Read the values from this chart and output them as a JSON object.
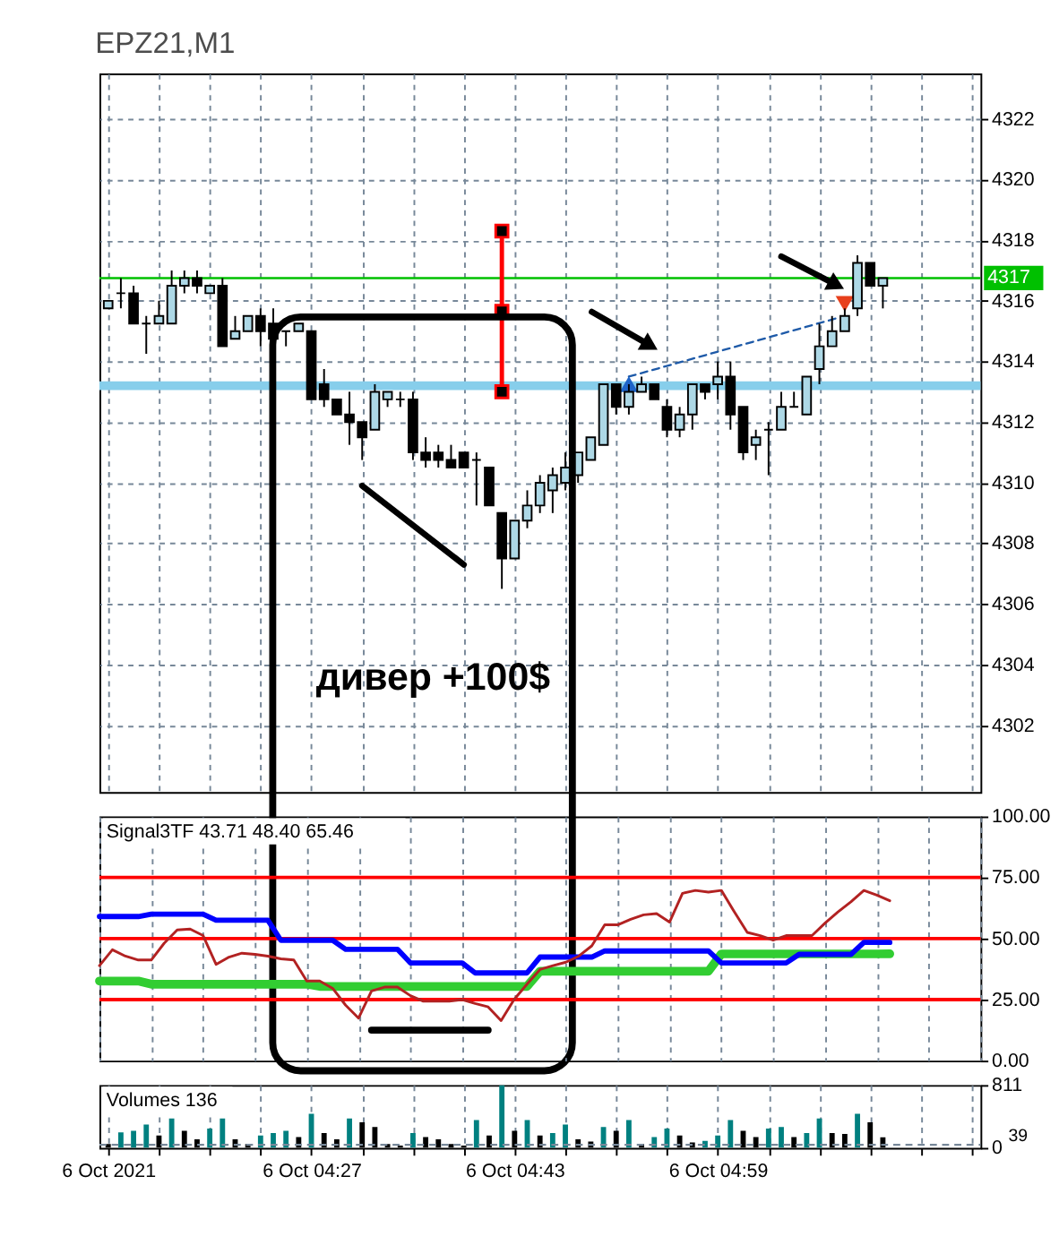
{
  "chart_data": [
    {
      "type": "candlestick",
      "title": "EPZ21,M1",
      "x": [
        "2021-10-06T04:11",
        "2021-10-06T04:12",
        "2021-10-06T04:13",
        "2021-10-06T04:14",
        "2021-10-06T04:15",
        "2021-10-06T04:16",
        "2021-10-06T04:17",
        "2021-10-06T04:18",
        "2021-10-06T04:19",
        "2021-10-06T04:20",
        "2021-10-06T04:21",
        "2021-10-06T04:22",
        "2021-10-06T04:23",
        "2021-10-06T04:24",
        "2021-10-06T04:25",
        "2021-10-06T04:26",
        "2021-10-06T04:27",
        "2021-10-06T04:28",
        "2021-10-06T04:29",
        "2021-10-06T04:30",
        "2021-10-06T04:31",
        "2021-10-06T04:32",
        "2021-10-06T04:33",
        "2021-10-06T04:34",
        "2021-10-06T04:35",
        "2021-10-06T04:36",
        "2021-10-06T04:37",
        "2021-10-06T04:38",
        "2021-10-06T04:39",
        "2021-10-06T04:40",
        "2021-10-06T04:41",
        "2021-10-06T04:42",
        "2021-10-06T04:43",
        "2021-10-06T04:44",
        "2021-10-06T04:45",
        "2021-10-06T04:46",
        "2021-10-06T04:47",
        "2021-10-06T04:48",
        "2021-10-06T04:49",
        "2021-10-06T04:50",
        "2021-10-06T04:51",
        "2021-10-06T04:52",
        "2021-10-06T04:53",
        "2021-10-06T04:54",
        "2021-10-06T04:55",
        "2021-10-06T04:56",
        "2021-10-06T04:57",
        "2021-10-06T04:58",
        "2021-10-06T04:59",
        "2021-10-06T05:00",
        "2021-10-06T05:01",
        "2021-10-06T05:02",
        "2021-10-06T05:03",
        "2021-10-06T05:04",
        "2021-10-06T05:05",
        "2021-10-06T05:06",
        "2021-10-06T05:07",
        "2021-10-06T05:08",
        "2021-10-06T05:09",
        "2021-10-06T05:10",
        "2021-10-06T05:11",
        "2021-10-06T05:12"
      ],
      "ohlc": [
        [
          4315.75,
          4316.0,
          4315.75,
          4316.0
        ],
        [
          4316.25,
          4316.75,
          4315.75,
          4316.25
        ],
        [
          4316.25,
          4316.5,
          4315.25,
          4315.25
        ],
        [
          4315.25,
          4315.5,
          4314.25,
          4315.25
        ],
        [
          4315.25,
          4316.0,
          4315.25,
          4315.5
        ],
        [
          4315.25,
          4317.0,
          4315.25,
          4316.5
        ],
        [
          4316.5,
          4317.0,
          4316.25,
          4316.75
        ],
        [
          4316.75,
          4317.0,
          4316.25,
          4316.5
        ],
        [
          4316.25,
          4316.5,
          4316.25,
          4316.5
        ],
        [
          4316.5,
          4316.75,
          4314.5,
          4314.5
        ],
        [
          4314.75,
          4315.5,
          4314.75,
          4315.0
        ],
        [
          4315.0,
          4315.5,
          4315.0,
          4315.5
        ],
        [
          4315.5,
          4315.75,
          4314.5,
          4315.0
        ],
        [
          4315.25,
          4315.75,
          4314.75,
          4314.75
        ],
        [
          4315.0,
          4315.0,
          4314.5,
          4315.0
        ],
        [
          4315.0,
          4315.25,
          4315.0,
          4315.25
        ],
        [
          4315.0,
          4315.0,
          4312.75,
          4312.75
        ],
        [
          4313.25,
          4313.75,
          4312.5,
          4312.75
        ],
        [
          4312.75,
          4312.75,
          4312.25,
          4312.25
        ],
        [
          4312.25,
          4313.0,
          4311.25,
          4312.0
        ],
        [
          4312.0,
          4312.0,
          4310.75,
          4311.5
        ],
        [
          4311.75,
          4313.25,
          4311.75,
          4313.0
        ],
        [
          4312.75,
          4313.0,
          4312.5,
          4313.0
        ],
        [
          4312.75,
          4313.0,
          4312.5,
          4312.75
        ],
        [
          4312.75,
          4313.0,
          4310.75,
          4311.0
        ],
        [
          4311.0,
          4311.5,
          4310.5,
          4310.75
        ],
        [
          4311.0,
          4311.25,
          4310.5,
          4310.75
        ],
        [
          4310.75,
          4311.25,
          4310.5,
          4310.5
        ],
        [
          4311.0,
          4311.0,
          4310.5,
          4310.5
        ],
        [
          4310.75,
          4311.0,
          4309.25,
          4310.75
        ],
        [
          4310.5,
          4310.5,
          4309.25,
          4309.25
        ],
        [
          4309.0,
          4309.0,
          4306.5,
          4307.5
        ],
        [
          4307.5,
          4308.75,
          4307.5,
          4308.75
        ],
        [
          4308.75,
          4309.75,
          4308.5,
          4309.25
        ],
        [
          4309.25,
          4310.25,
          4309.0,
          4310.0
        ],
        [
          4309.75,
          4310.5,
          4309.0,
          4310.25
        ],
        [
          4310.0,
          4311.0,
          4309.75,
          4310.5
        ],
        [
          4310.25,
          4311.0,
          4310.0,
          4311.0
        ],
        [
          4310.75,
          4311.5,
          4310.75,
          4311.5
        ],
        [
          4311.25,
          4313.25,
          4311.25,
          4313.25
        ],
        [
          4313.25,
          4313.25,
          4312.25,
          4312.5
        ],
        [
          4312.5,
          4313.25,
          4312.25,
          4313.0
        ],
        [
          4313.0,
          4313.5,
          4313.0,
          4313.25
        ],
        [
          4313.25,
          4313.25,
          4312.75,
          4312.75
        ],
        [
          4312.5,
          4312.75,
          4311.5,
          4311.75
        ],
        [
          4311.75,
          4312.5,
          4311.5,
          4312.25
        ],
        [
          4312.25,
          4313.25,
          4311.75,
          4313.25
        ],
        [
          4313.25,
          4313.25,
          4312.75,
          4313.0
        ],
        [
          4313.25,
          4314.0,
          4312.75,
          4313.5
        ],
        [
          4313.5,
          4314.0,
          4311.75,
          4312.25
        ],
        [
          4312.5,
          4312.5,
          4310.75,
          4311.0
        ],
        [
          4311.25,
          4311.75,
          4310.75,
          4311.5
        ],
        [
          4311.75,
          4312.0,
          4310.25,
          4311.75
        ],
        [
          4311.75,
          4313.0,
          4311.75,
          4312.5
        ],
        [
          4312.5,
          4313.0,
          4312.5,
          4312.5
        ],
        [
          4312.25,
          4313.5,
          4312.25,
          4313.5
        ],
        [
          4313.75,
          4315.25,
          4313.25,
          4314.5
        ],
        [
          4314.5,
          4315.5,
          4314.5,
          4315.0
        ],
        [
          4315.0,
          4315.75,
          4315.0,
          4315.5
        ],
        [
          4315.75,
          4317.5,
          4315.5,
          4317.25
        ],
        [
          4317.25,
          4317.25,
          4316.5,
          4316.5
        ],
        [
          4316.5,
          4316.75,
          4315.75,
          4316.75
        ]
      ],
      "colors": [
        "#add8e6",
        "#000000",
        "#000000",
        "#000000",
        "#add8e6",
        "#add8e6",
        "#add8e6",
        "#000000",
        "#add8e6",
        "#000000",
        "#add8e6",
        "#add8e6",
        "#000000",
        "#000000",
        "#000000",
        "#add8e6",
        "#000000",
        "#000000",
        "#000000",
        "#000000",
        "#000000",
        "#add8e6",
        "#add8e6",
        "#000000",
        "#000000",
        "#000000",
        "#000000",
        "#000000",
        "#000000",
        "#000000",
        "#000000",
        "#000000",
        "#add8e6",
        "#add8e6",
        "#add8e6",
        "#add8e6",
        "#add8e6",
        "#add8e6",
        "#add8e6",
        "#add8e6",
        "#000000",
        "#add8e6",
        "#add8e6",
        "#000000",
        "#000000",
        "#add8e6",
        "#add8e6",
        "#000000",
        "#add8e6",
        "#000000",
        "#000000",
        "#add8e6",
        "#000000",
        "#add8e6",
        "#000000",
        "#add8e6",
        "#add8e6",
        "#add8e6",
        "#add8e6",
        "#add8e6",
        "#000000",
        "#add8e6"
      ],
      "series": [
        {
          "type": "line",
          "x": [
            "2021-10-06T04:42",
            "2021-10-06T04:42",
            "2021-10-06T04:42"
          ],
          "values": [
            4318.3,
            4315.65,
            4313.0
          ],
          "color": "#ff0000",
          "marker": "square"
        },
        {
          "type": "line",
          "x": [
            "2021-10-06T04:52",
            "2021-10-06T05:09"
          ],
          "values": [
            4313.5,
            4315.5
          ],
          "color": "#1e5aa8",
          "line_style": "dashed"
        },
        {
          "type": "scatter",
          "x": [
            "2021-10-06T04:52"
          ],
          "values": [
            4313.25
          ],
          "color": "#1e64c8",
          "marker": "triangle"
        },
        {
          "type": "scatter",
          "x": [
            "2021-10-06T05:09"
          ],
          "values": [
            4315.9
          ],
          "color": "#e8401c",
          "marker": "triangle-down"
        },
        {
          "type": "line",
          "x": [
            "2021-10-06T04:31",
            "2021-10-06T04:39"
          ],
          "values": [
            4309.9,
            4307.3
          ],
          "color": "#000000"
        }
      ],
      "ref_lines": [
        {
          "axis": "y",
          "value": 4316.75,
          "label": "4317",
          "color": "#00c000"
        },
        {
          "axis": "y",
          "value": 4313.2,
          "color": "#87ceeb"
        }
      ],
      "annotations": [
        "дивер +100$"
      ],
      "xlim": [
        "2021-10-06T04:11",
        "2021-10-06T05:19"
      ],
      "xticks": [
        {
          "value": "2021-10-06T04:11",
          "label": null
        },
        {
          "value": "2021-10-06T04:15",
          "label": null
        },
        {
          "value": "2021-10-06T04:19",
          "label": null
        },
        {
          "value": "2021-10-06T04:23",
          "label": null
        },
        {
          "value": "2021-10-06T04:27",
          "label": null
        },
        {
          "value": "2021-10-06T04:31",
          "label": null
        },
        {
          "value": "2021-10-06T04:35",
          "label": null
        },
        {
          "value": "2021-10-06T04:39",
          "label": null
        },
        {
          "value": "2021-10-06T04:43",
          "label": null
        },
        {
          "value": "2021-10-06T04:47",
          "label": null
        },
        {
          "value": "2021-10-06T04:51",
          "label": null
        },
        {
          "value": "2021-10-06T04:55",
          "label": null
        },
        {
          "value": "2021-10-06T04:59",
          "label": null
        },
        {
          "value": "2021-10-06T05:03",
          "label": null
        },
        {
          "value": "2021-10-06T05:07",
          "label": null
        },
        {
          "value": "2021-10-06T05:11",
          "label": null
        },
        {
          "value": "2021-10-06T05:15",
          "label": null
        },
        {
          "value": "2021-10-06T05:19",
          "label": null
        }
      ],
      "ylim": [
        4299.8,
        4323.5
      ],
      "yticks": [
        4302,
        4304,
        4306,
        4308,
        4310,
        4312,
        4314,
        4316,
        4318,
        4320,
        4322
      ],
      "grid": true,
      "tick_labels": "y"
    },
    {
      "type": "line",
      "title": "Signal3TF 43.71 48.40 65.46",
      "x": [
        "2021-10-06T04:11",
        "2021-10-06T04:12",
        "2021-10-06T04:13",
        "2021-10-06T04:14",
        "2021-10-06T04:15",
        "2021-10-06T04:16",
        "2021-10-06T04:17",
        "2021-10-06T04:18",
        "2021-10-06T04:19",
        "2021-10-06T04:20",
        "2021-10-06T04:21",
        "2021-10-06T04:22",
        "2021-10-06T04:23",
        "2021-10-06T04:24",
        "2021-10-06T04:25",
        "2021-10-06T04:26",
        "2021-10-06T04:27",
        "2021-10-06T04:28",
        "2021-10-06T04:29",
        "2021-10-06T04:30",
        "2021-10-06T04:31",
        "2021-10-06T04:32",
        "2021-10-06T04:33",
        "2021-10-06T04:34",
        "2021-10-06T04:35",
        "2021-10-06T04:36",
        "2021-10-06T04:37",
        "2021-10-06T04:38",
        "2021-10-06T04:39",
        "2021-10-06T04:40",
        "2021-10-06T04:41",
        "2021-10-06T04:42",
        "2021-10-06T04:43",
        "2021-10-06T04:44",
        "2021-10-06T04:45",
        "2021-10-06T04:46",
        "2021-10-06T04:47",
        "2021-10-06T04:48",
        "2021-10-06T04:49",
        "2021-10-06T04:50",
        "2021-10-06T04:51",
        "2021-10-06T04:52",
        "2021-10-06T04:53",
        "2021-10-06T04:54",
        "2021-10-06T04:55",
        "2021-10-06T04:56",
        "2021-10-06T04:57",
        "2021-10-06T04:58",
        "2021-10-06T04:59",
        "2021-10-06T05:00",
        "2021-10-06T05:01",
        "2021-10-06T05:02",
        "2021-10-06T05:03",
        "2021-10-06T05:04",
        "2021-10-06T05:05",
        "2021-10-06T05:06",
        "2021-10-06T05:07",
        "2021-10-06T05:08",
        "2021-10-06T05:09",
        "2021-10-06T05:10",
        "2021-10-06T05:11",
        "2021-10-06T05:12"
      ],
      "series": [
        {
          "color": "#32cd32",
          "values": [
            32.6,
            32.6,
            32.6,
            32.6,
            31.3,
            31.3,
            31.3,
            31.3,
            31.3,
            31.3,
            31.3,
            31.3,
            31.3,
            31.3,
            31.3,
            31.3,
            31.3,
            30.4,
            30.4,
            30.4,
            30.4,
            30.4,
            30.4,
            30.4,
            30.4,
            30.4,
            30.4,
            30.4,
            30.4,
            30.4,
            30.4,
            30.4,
            30.4,
            30.4,
            36.6,
            36.6,
            36.6,
            36.6,
            36.6,
            36.6,
            36.6,
            36.6,
            36.6,
            36.6,
            36.6,
            36.6,
            36.6,
            36.6,
            43.7,
            43.7,
            43.7,
            43.7,
            43.7,
            43.7,
            43.7,
            43.7,
            43.7,
            43.7,
            43.7,
            43.7,
            43.7,
            43.71
          ]
        },
        {
          "color": "#0000ff",
          "values": [
            59.0,
            59.0,
            59.0,
            59.0,
            60.0,
            60.0,
            60.0,
            60.0,
            60.0,
            57.5,
            57.5,
            57.5,
            57.5,
            57.5,
            49.3,
            49.3,
            49.3,
            49.3,
            49.3,
            45.6,
            45.6,
            45.6,
            45.6,
            45.6,
            40.0,
            40.0,
            40.0,
            40.0,
            40.0,
            35.9,
            35.9,
            35.9,
            35.9,
            35.9,
            42.4,
            42.4,
            42.4,
            42.4,
            42.4,
            44.9,
            44.9,
            44.9,
            44.9,
            44.9,
            44.9,
            44.9,
            44.9,
            44.9,
            40.0,
            40.0,
            40.0,
            40.0,
            40.0,
            40.0,
            43.5,
            43.5,
            43.5,
            43.5,
            43.5,
            48.4,
            48.4,
            48.4
          ]
        },
        {
          "color": "#b22222",
          "values": [
            38.9,
            45.4,
            42.8,
            41.2,
            41.2,
            48.1,
            53.5,
            53.9,
            51.2,
            39.4,
            42.4,
            44.0,
            43.5,
            42.8,
            41.7,
            41.2,
            32.6,
            32.6,
            29.6,
            22.7,
            17.4,
            28.5,
            30.1,
            30.1,
            26.6,
            24.3,
            24.3,
            24.3,
            25.0,
            23.4,
            22.0,
            16.4,
            25.0,
            31.3,
            37.3,
            38.9,
            40.3,
            42.8,
            47.0,
            55.6,
            55.6,
            57.9,
            59.7,
            60.2,
            56.7,
            68.5,
            69.7,
            69.0,
            69.7,
            60.9,
            52.5,
            51.2,
            49.3,
            51.2,
            51.2,
            51.2,
            56.3,
            60.9,
            65.0,
            69.7,
            67.8,
            65.46
          ]
        },
        {
          "type": "line",
          "x": [
            "2021-10-06T04:32",
            "2021-10-06T04:41"
          ],
          "values": [
            12.5,
            12.5
          ],
          "color": "#000000"
        }
      ],
      "ref_lines": [
        {
          "axis": "y",
          "value": 75,
          "color": "#ff0000"
        },
        {
          "axis": "y",
          "value": 50,
          "color": "#ff0000"
        },
        {
          "axis": "y",
          "value": 25,
          "color": "#ff0000"
        }
      ],
      "xlim": [
        "2021-10-06T04:11",
        "2021-10-06T05:19"
      ],
      "xticks": [
        {
          "value": "2021-10-06T04:11",
          "label": null
        },
        {
          "value": "2021-10-06T04:15",
          "label": null
        },
        {
          "value": "2021-10-06T04:19",
          "label": null
        },
        {
          "value": "2021-10-06T04:23",
          "label": null
        },
        {
          "value": "2021-10-06T04:27",
          "label": null
        },
        {
          "value": "2021-10-06T04:31",
          "label": null
        },
        {
          "value": "2021-10-06T04:35",
          "label": null
        },
        {
          "value": "2021-10-06T04:39",
          "label": null
        },
        {
          "value": "2021-10-06T04:43",
          "label": null
        },
        {
          "value": "2021-10-06T04:47",
          "label": null
        },
        {
          "value": "2021-10-06T04:51",
          "label": null
        },
        {
          "value": "2021-10-06T04:55",
          "label": null
        },
        {
          "value": "2021-10-06T04:59",
          "label": null
        },
        {
          "value": "2021-10-06T05:03",
          "label": null
        },
        {
          "value": "2021-10-06T05:07",
          "label": null
        },
        {
          "value": "2021-10-06T05:11",
          "label": null
        },
        {
          "value": "2021-10-06T05:15",
          "label": null
        },
        {
          "value": "2021-10-06T05:19",
          "label": null
        }
      ],
      "ylim": [
        0,
        100
      ],
      "yticks": [
        {
          "value": 0,
          "label": "0.00"
        },
        {
          "value": 25,
          "label": "25.00"
        },
        {
          "value": 50,
          "label": "50.00"
        },
        {
          "value": 75,
          "label": "75.00"
        },
        {
          "value": 100,
          "label": "100.00"
        }
      ],
      "grid": "x",
      "tick_labels": "y"
    },
    {
      "type": "bar",
      "title": "Volumes 136",
      "x": [
        "2021-10-06T04:11",
        "2021-10-06T04:12",
        "2021-10-06T04:13",
        "2021-10-06T04:14",
        "2021-10-06T04:15",
        "2021-10-06T04:16",
        "2021-10-06T04:17",
        "2021-10-06T04:18",
        "2021-10-06T04:19",
        "2021-10-06T04:20",
        "2021-10-06T04:21",
        "2021-10-06T04:22",
        "2021-10-06T04:23",
        "2021-10-06T04:24",
        "2021-10-06T04:25",
        "2021-10-06T04:26",
        "2021-10-06T04:27",
        "2021-10-06T04:28",
        "2021-10-06T04:29",
        "2021-10-06T04:30",
        "2021-10-06T04:31",
        "2021-10-06T04:32",
        "2021-10-06T04:33",
        "2021-10-06T04:34",
        "2021-10-06T04:35",
        "2021-10-06T04:36",
        "2021-10-06T04:37",
        "2021-10-06T04:38",
        "2021-10-06T04:39",
        "2021-10-06T04:40",
        "2021-10-06T04:41",
        "2021-10-06T04:42",
        "2021-10-06T04:43",
        "2021-10-06T04:44",
        "2021-10-06T04:45",
        "2021-10-06T04:46",
        "2021-10-06T04:47",
        "2021-10-06T04:48",
        "2021-10-06T04:49",
        "2021-10-06T04:50",
        "2021-10-06T04:51",
        "2021-10-06T04:52",
        "2021-10-06T04:53",
        "2021-10-06T04:54",
        "2021-10-06T04:55",
        "2021-10-06T04:56",
        "2021-10-06T04:57",
        "2021-10-06T04:58",
        "2021-10-06T04:59",
        "2021-10-06T05:00",
        "2021-10-06T05:01",
        "2021-10-06T05:02",
        "2021-10-06T05:03",
        "2021-10-06T05:04",
        "2021-10-06T05:05",
        "2021-10-06T05:06",
        "2021-10-06T05:07",
        "2021-10-06T05:08",
        "2021-10-06T05:09",
        "2021-10-06T05:10",
        "2021-10-06T05:11",
        "2021-10-06T05:12"
      ],
      "values": [
        50,
        200,
        220,
        300,
        160,
        380,
        220,
        110,
        250,
        380,
        110,
        50,
        160,
        190,
        220,
        140,
        440,
        190,
        110,
        380,
        330,
        270,
        50,
        30,
        190,
        140,
        110,
        50,
        30,
        360,
        160,
        811,
        220,
        360,
        160,
        190,
        300,
        110,
        80,
        270,
        220,
        360,
        50,
        140,
        250,
        160,
        70,
        90,
        160,
        360,
        220,
        140,
        250,
        270,
        140,
        190,
        380,
        190,
        180,
        440,
        330,
        136
      ],
      "colors": [
        "#000000",
        "#008080",
        "#008080",
        "#008080",
        "#000000",
        "#008080",
        "#000000",
        "#000000",
        "#008080",
        "#008080",
        "#000000",
        "#000000",
        "#008080",
        "#008080",
        "#008080",
        "#000000",
        "#008080",
        "#000000",
        "#000000",
        "#008080",
        "#000000",
        "#000000",
        "#000000",
        "#000000",
        "#008080",
        "#000000",
        "#000000",
        "#000000",
        "#000000",
        "#008080",
        "#000000",
        "#008080",
        "#000000",
        "#008080",
        "#000000",
        "#008080",
        "#008080",
        "#000000",
        "#000000",
        "#008080",
        "#000000",
        "#008080",
        "#000000",
        "#008080",
        "#008080",
        "#000000",
        "#000000",
        "#008080",
        "#008080",
        "#008080",
        "#000000",
        "#000000",
        "#008080",
        "#008080",
        "#000000",
        "#008080",
        "#008080",
        "#000000",
        "#000000",
        "#008080",
        "#000000",
        "#000000"
      ],
      "ref_lines": [
        {
          "axis": "y",
          "value": 39,
          "label": "39",
          "line_style": "dashed"
        }
      ],
      "xlim": [
        "2021-10-06T04:11",
        "2021-10-06T05:19"
      ],
      "xticks": [
        {
          "value": "2021-10-06T04:11",
          "label": "6 Oct 2021"
        },
        {
          "value": "2021-10-06T04:15",
          "label": null
        },
        {
          "value": "2021-10-06T04:19",
          "label": null
        },
        {
          "value": "2021-10-06T04:23",
          "label": null
        },
        {
          "value": "2021-10-06T04:27",
          "label": "6 Oct 04:27"
        },
        {
          "value": "2021-10-06T04:31",
          "label": null
        },
        {
          "value": "2021-10-06T04:35",
          "label": null
        },
        {
          "value": "2021-10-06T04:39",
          "label": null
        },
        {
          "value": "2021-10-06T04:43",
          "label": "6 Oct 04:43"
        },
        {
          "value": "2021-10-06T04:47",
          "label": null
        },
        {
          "value": "2021-10-06T04:51",
          "label": null
        },
        {
          "value": "2021-10-06T04:55",
          "label": null
        },
        {
          "value": "2021-10-06T04:59",
          "label": "6 Oct 04:59"
        },
        {
          "value": "2021-10-06T05:03",
          "label": null
        },
        {
          "value": "2021-10-06T05:07",
          "label": null
        },
        {
          "value": "2021-10-06T05:11",
          "label": null
        },
        {
          "value": "2021-10-06T05:15",
          "label": null
        },
        {
          "value": "2021-10-06T05:19",
          "label": null
        }
      ],
      "ylim": [
        0,
        811
      ],
      "yticks": [
        0,
        811
      ],
      "grid": "x"
    }
  ]
}
